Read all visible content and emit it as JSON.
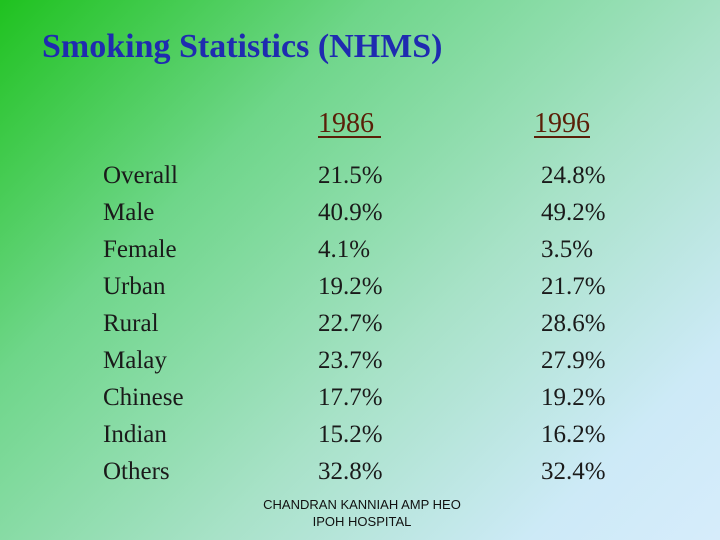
{
  "title": "Smoking Statistics (NHMS)",
  "table": {
    "headers": [
      "1986 ",
      "1996"
    ],
    "rows": [
      {
        "label": "Overall",
        "v1986": "21.5%",
        "v1996": "24.8%"
      },
      {
        "label": "Male",
        "v1986": "40.9%",
        "v1996": "49.2%"
      },
      {
        "label": "Female",
        "v1986": "4.1%",
        "v1996": "3.5%"
      },
      {
        "label": "Urban",
        "v1986": "19.2%",
        "v1996": "21.7%"
      },
      {
        "label": "Rural",
        "v1986": "22.7%",
        "v1996": "28.6%"
      },
      {
        "label": "Malay",
        "v1986": "23.7%",
        "v1996": "27.9%"
      },
      {
        "label": "Chinese",
        "v1986": "17.7%",
        "v1996": "19.2%"
      },
      {
        "label": "Indian",
        "v1986": "15.2%",
        "v1996": "16.2%"
      },
      {
        "label": "Others",
        "v1986": "32.8%",
        "v1996": "32.4%"
      }
    ]
  },
  "footer": {
    "line1": "CHANDRAN KANNIAH AMP HEO",
    "line2": "IPOH HOSPITAL"
  }
}
